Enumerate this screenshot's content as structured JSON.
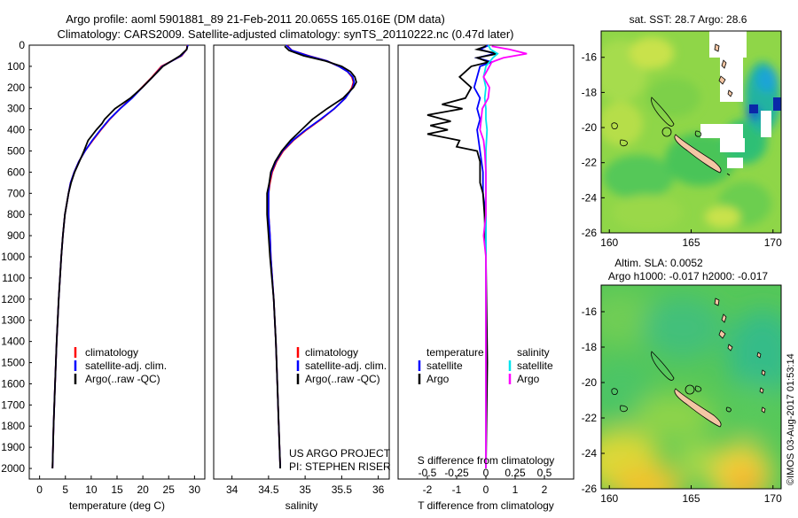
{
  "header": {
    "line1": "Argo profile: aoml 5901881_89 21-Feb-2011 20.065S 165.016E (DM data)",
    "line2": "Climatology: CARS2009. Satellite-adjusted climatology: synTS_20110222.nc (0.47d later)"
  },
  "depth_ticks": [
    "0",
    "100",
    "200",
    "300",
    "400",
    "500",
    "600",
    "700",
    "800",
    "900",
    "1000",
    "1100",
    "1200",
    "1300",
    "1400",
    "1500",
    "1600",
    "1700",
    "1800",
    "1900",
    "2000"
  ],
  "colors": {
    "climatology": "#ff0000",
    "satellite": "#0000ff",
    "argo": "#000000",
    "sal_satellite": "#00e5ee",
    "sal_argo": "#ff00ff"
  },
  "credit": {
    "project": "US ARGO PROJECT",
    "pi": "PI: STEPHEN RISER",
    "imos": "©IMOS 03-Aug-2017 01:53:14"
  },
  "chart_data": [
    {
      "type": "line",
      "xlabel": "temperature (deg C)",
      "xticks": [
        "0",
        "5",
        "10",
        "15",
        "20",
        "25",
        "30"
      ],
      "xlim": [
        -2,
        32
      ],
      "ylim": [
        0,
        2050
      ],
      "y_inverted": true,
      "legend": [
        "climatology",
        "satellite-adj. clim.",
        "Argo(..raw -QC)"
      ],
      "series": [
        {
          "name": "climatology",
          "depth": [
            0,
            20,
            50,
            100,
            150,
            200,
            250,
            300,
            350,
            400,
            450,
            500,
            550,
            600,
            650,
            700,
            800,
            900,
            1000,
            1200,
            1400,
            1600,
            1800,
            2000
          ],
          "values": [
            28.6,
            28.5,
            27.5,
            23.6,
            21.8,
            19.8,
            17.8,
            15.6,
            13.6,
            11.9,
            10.3,
            8.8,
            7.6,
            6.7,
            6.0,
            5.6,
            4.9,
            4.5,
            4.2,
            3.7,
            3.3,
            3.0,
            2.7,
            2.5
          ]
        },
        {
          "name": "satellite-adj. clim.",
          "depth": [
            0,
            20,
            50,
            100,
            150,
            200,
            250,
            300,
            350,
            400,
            450,
            500,
            550,
            600,
            650,
            700,
            800,
            900,
            1000,
            1200,
            1400,
            1600,
            1800,
            2000
          ],
          "values": [
            28.7,
            28.5,
            27.4,
            23.8,
            21.9,
            19.9,
            17.9,
            15.6,
            13.5,
            11.8,
            10.2,
            8.8,
            7.6,
            6.7,
            6.0,
            5.6,
            4.9,
            4.5,
            4.2,
            3.7,
            3.3,
            3.0,
            2.7,
            2.5
          ]
        },
        {
          "name": "Argo(..raw -QC)",
          "depth": [
            5,
            20,
            50,
            100,
            150,
            200,
            250,
            300,
            350,
            370,
            400,
            450,
            500,
            550,
            600,
            650,
            700,
            800,
            900,
            1000,
            1200,
            1400,
            1600,
            1800,
            2000
          ],
          "values": [
            28.6,
            28.5,
            27.2,
            23.9,
            21.9,
            19.9,
            17.6,
            14.6,
            12.6,
            12.1,
            11.0,
            9.4,
            8.6,
            7.7,
            6.8,
            6.1,
            5.6,
            4.9,
            4.5,
            4.2,
            3.7,
            3.3,
            3.0,
            2.7,
            2.5
          ]
        }
      ]
    },
    {
      "type": "line",
      "xlabel": "salinity",
      "xticks": [
        "34",
        "34.5",
        "35",
        "35.5",
        "36"
      ],
      "xlim": [
        33.75,
        36.15
      ],
      "ylim": [
        0,
        2050
      ],
      "y_inverted": true,
      "legend": [
        "climatology",
        "satellite-adj. clim.",
        "Argo(..raw -QC)"
      ],
      "series": [
        {
          "name": "climatology",
          "depth": [
            0,
            25,
            50,
            75,
            100,
            125,
            150,
            175,
            200,
            250,
            300,
            350,
            400,
            450,
            500,
            550,
            600,
            650,
            700,
            800,
            900,
            1000,
            1200,
            1400,
            1600,
            1800,
            2000
          ],
          "values": [
            34.75,
            34.82,
            35.05,
            35.3,
            35.46,
            35.58,
            35.64,
            35.66,
            35.64,
            35.55,
            35.4,
            35.22,
            35.02,
            34.84,
            34.7,
            34.61,
            34.55,
            34.52,
            34.5,
            34.5,
            34.52,
            34.53,
            34.57,
            34.6,
            34.62,
            34.64,
            34.66
          ]
        },
        {
          "name": "satellite-adj. clim.",
          "depth": [
            0,
            25,
            50,
            75,
            100,
            125,
            150,
            175,
            200,
            250,
            300,
            350,
            400,
            450,
            500,
            550,
            600,
            650,
            700,
            800,
            900,
            1000,
            1200,
            1400,
            1600,
            1800,
            2000
          ],
          "values": [
            34.74,
            34.82,
            35.04,
            35.3,
            35.46,
            35.58,
            35.65,
            35.67,
            35.65,
            35.55,
            35.4,
            35.21,
            35.01,
            34.83,
            34.69,
            34.6,
            34.54,
            34.51,
            34.5,
            34.5,
            34.52,
            34.53,
            34.57,
            34.6,
            34.62,
            34.64,
            34.66
          ]
        },
        {
          "name": "Argo(..raw -QC)",
          "depth": [
            5,
            25,
            50,
            75,
            100,
            125,
            150,
            175,
            200,
            250,
            300,
            350,
            400,
            450,
            500,
            550,
            600,
            650,
            700,
            800,
            900,
            1000,
            1200,
            1400,
            1600,
            1800,
            2000
          ],
          "values": [
            34.72,
            34.78,
            34.98,
            35.28,
            35.5,
            35.62,
            35.68,
            35.7,
            35.66,
            35.52,
            35.3,
            35.1,
            34.95,
            34.8,
            34.68,
            34.59,
            34.53,
            34.51,
            34.48,
            34.48,
            34.5,
            34.52,
            34.57,
            34.6,
            34.62,
            34.64,
            34.66
          ]
        }
      ]
    },
    {
      "type": "line",
      "xlabel": "T difference from climatology",
      "xlabel2": "S difference from climatology",
      "xticks": [
        "-2",
        "-1",
        "0",
        "1",
        "2"
      ],
      "xticks2": [
        "-0.5",
        "-0.25",
        "0",
        "0.25",
        "0.5"
      ],
      "xlim": [
        -3,
        3
      ],
      "ylim": [
        0,
        2050
      ],
      "y_inverted": true,
      "legend_headers": [
        "temperature",
        "salinity"
      ],
      "legend": [
        "satellite",
        "Argo",
        "satellite",
        "Argo"
      ],
      "series": [
        {
          "name": "satellite",
          "group": "temperature",
          "depth": [
            0,
            20,
            40,
            60,
            80,
            100,
            150,
            200,
            250,
            300,
            350,
            400,
            500,
            600,
            700,
            800,
            1000,
            1500,
            2000
          ],
          "values": [
            0.1,
            -0.2,
            0.3,
            -0.3,
            0.2,
            -0.2,
            -0.3,
            -0.4,
            -0.2,
            -0.3,
            -0.2,
            -0.3,
            -0.2,
            -0.1,
            -0.1,
            0.0,
            0.0,
            0.0,
            0.0
          ]
        },
        {
          "name": "Argo",
          "group": "temperature",
          "depth": [
            5,
            20,
            40,
            60,
            80,
            100,
            150,
            200,
            250,
            280,
            300,
            330,
            360,
            380,
            400,
            420,
            450,
            480,
            500,
            550,
            600,
            650,
            700,
            800,
            1000,
            1500,
            2000
          ],
          "values": [
            0.0,
            -0.3,
            0.4,
            -0.3,
            0.1,
            -0.5,
            -0.9,
            -0.5,
            -0.7,
            -1.5,
            -0.8,
            -2.0,
            -1.2,
            -1.9,
            -1.3,
            -2.0,
            -0.9,
            -1.0,
            -0.3,
            -0.2,
            -0.2,
            -0.2,
            -0.1,
            -0.05,
            0.0,
            0.05,
            0.0
          ]
        },
        {
          "name": "satellite",
          "group": "salinity",
          "depth": [
            0,
            20,
            40,
            60,
            80,
            100,
            150,
            200,
            250,
            300,
            350,
            400,
            500,
            600,
            700,
            800,
            1000,
            1500,
            2000
          ],
          "values": [
            0.02,
            0.04,
            0.1,
            0.06,
            0.03,
            0.0,
            -0.02,
            0.0,
            -0.01,
            0.0,
            0.0,
            0.01,
            0.0,
            0.0,
            0.0,
            0.0,
            0.0,
            0.0,
            0.0
          ]
        },
        {
          "name": "Argo",
          "group": "salinity",
          "depth": [
            5,
            20,
            40,
            60,
            80,
            100,
            150,
            200,
            250,
            300,
            350,
            400,
            450,
            500,
            600,
            700,
            800,
            900,
            1000,
            1500,
            2000
          ],
          "values": [
            0.05,
            0.2,
            0.35,
            0.15,
            0.05,
            0.03,
            -0.02,
            0.03,
            0.02,
            -0.03,
            -0.04,
            -0.05,
            -0.02,
            -0.01,
            0.0,
            0.0,
            0.0,
            -0.02,
            0.0,
            0.0,
            0.0
          ]
        }
      ]
    },
    {
      "type": "heatmap",
      "title": "sat. SST: 28.7 Argo: 28.6",
      "xticks": [
        "160",
        "165",
        "170"
      ],
      "yticks": [
        "-16",
        "-18",
        "-20",
        "-22",
        "-24",
        "-26"
      ],
      "xlim": [
        159.5,
        170.5
      ],
      "ylim": [
        -26,
        -14.5
      ]
    },
    {
      "type": "heatmap",
      "title": "Altim. SLA: 0.0052",
      "subtitle": "Argo h1000: -0.017 h2000: -0.017",
      "xticks": [
        "160",
        "165",
        "170"
      ],
      "yticks": [
        "-16",
        "-18",
        "-20",
        "-22",
        "-24",
        "-26"
      ],
      "xlim": [
        159.5,
        170.5
      ],
      "ylim": [
        -26,
        -14.5
      ]
    }
  ]
}
